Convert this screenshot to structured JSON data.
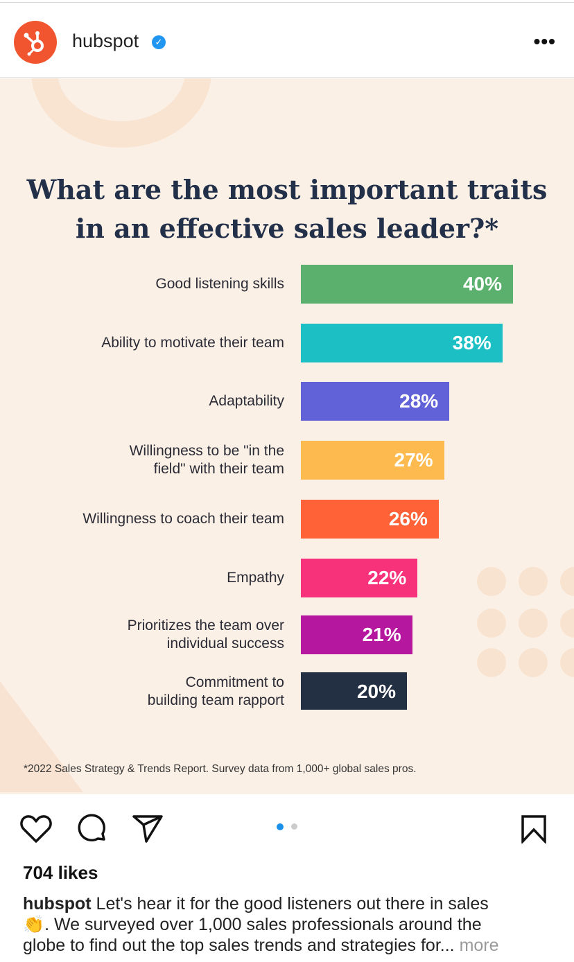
{
  "header": {
    "username": "hubspot",
    "verified": true,
    "menu_icon": "more-horizontal-icon"
  },
  "post": {
    "title_line1": "What are the most important traits",
    "title_line2": "in an effective sales leader?*",
    "footnote": "*2022 Sales Strategy & Trends Report. Survey data from 1,000+ global sales pros."
  },
  "chart_data": {
    "type": "bar",
    "orientation": "horizontal",
    "title": "What are the most important traits in an effective sales leader?*",
    "categories": [
      "Good listening skills",
      "Ability to motivate their team",
      "Adaptability",
      "Willingness to be \"in the field\" with their team",
      "Willingness to coach their team",
      "Empathy",
      "Prioritizes the team over individual success",
      "Commitment to building team rapport"
    ],
    "label_lines": [
      [
        "Good listening skills"
      ],
      [
        "Ability to motivate their team"
      ],
      [
        "Adaptability"
      ],
      [
        "Willingness to be \"in the",
        "field\" with their team"
      ],
      [
        "Willingness to coach their team"
      ],
      [
        "Empathy"
      ],
      [
        "Prioritizes the team over",
        "individual success"
      ],
      [
        "Commitment to",
        "building team rapport"
      ]
    ],
    "values": [
      40,
      38,
      28,
      27,
      26,
      22,
      21,
      20
    ],
    "data_labels": [
      "40%",
      "38%",
      "28%",
      "27%",
      "26%",
      "22%",
      "21%",
      "20%"
    ],
    "colors": [
      "#5bb06d",
      "#1cbfc3",
      "#6262d8",
      "#fdbb4f",
      "#fe6236",
      "#f8317b",
      "#b5189f",
      "#233044"
    ],
    "unit": "%"
  },
  "actions": {
    "like_icon": "heart-icon",
    "comment_icon": "comment-icon",
    "share_icon": "send-icon",
    "save_icon": "bookmark-icon",
    "carousel_pages": 2,
    "carousel_active": 1
  },
  "likes": "704 likes",
  "caption": {
    "username": "hubspot",
    "line1": "Let's hear it for the good listeners out there in sales",
    "emoji": "👏",
    "line2": ". We surveyed over 1,000 sales professionals around the",
    "line3": "globe to find out the top sales trends and strategies for...",
    "more": "more"
  }
}
